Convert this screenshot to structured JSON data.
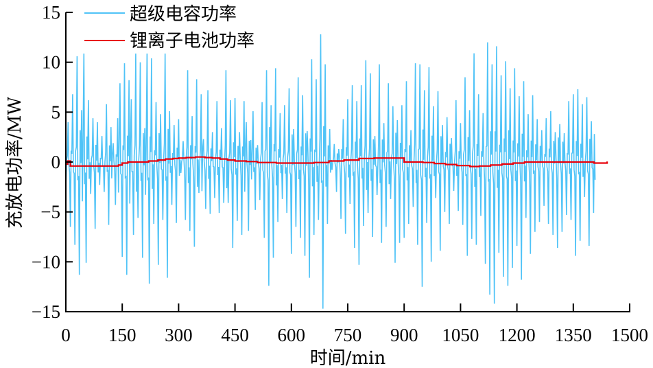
{
  "chart_data": {
    "type": "line",
    "title": "",
    "xlabel": "时间/min",
    "ylabel": "充放电功率/MW",
    "xlim": [
      0,
      1500
    ],
    "ylim": [
      -15,
      15
    ],
    "xticks": [
      0,
      150,
      300,
      450,
      600,
      750,
      900,
      1050,
      1200,
      1350,
      1500
    ],
    "yticks": [
      -15,
      -10,
      -5,
      0,
      5,
      10,
      15
    ],
    "xtick_labels": [
      "0",
      "150",
      "300",
      "450",
      "600",
      "750",
      "900",
      "1050",
      "1200",
      "1350",
      "1500"
    ],
    "ytick_labels": [
      "−15",
      "−10",
      "−5",
      "0",
      "5",
      "10",
      "15"
    ],
    "grid": false,
    "legend_position": "top-left",
    "series": [
      {
        "name": "超级电容功率",
        "color": "#4FC3F7",
        "sample_step_min": 6,
        "x_start": 0,
        "values": [
          -2.5,
          4.0,
          -6.5,
          6.8,
          -8.3,
          10.6,
          -11.3,
          5.2,
          11.1,
          -10.1,
          6.2,
          -3.2,
          4.4,
          -6.7,
          4.0,
          -2.3,
          2.6,
          -3.0,
          5.8,
          -6.3,
          3.5,
          1.9,
          -4.3,
          4.4,
          7.9,
          -9.5,
          9.9,
          -11.3,
          8.2,
          6.3,
          -7.3,
          10.9,
          -5.6,
          10.0,
          -9.6,
          3.4,
          11.1,
          -12.2,
          10.4,
          -6.2,
          6.0,
          -10.3,
          4.8,
          -5.8,
          10.9,
          -11.6,
          5.1,
          -4.3,
          3.7,
          -6.1,
          4.3,
          -1.1,
          2.1,
          -5.8,
          9.2,
          -6.9,
          4.6,
          -8.5,
          8.3,
          -3.1,
          6.8,
          2.3,
          -4.7,
          7.2,
          -5.2,
          3.0,
          -3.6,
          6.1,
          -5.1,
          3.4,
          -4.1,
          9.2,
          -4.1,
          6.2,
          -8.6,
          6.4,
          -5.9,
          3.0,
          -7.3,
          6.1,
          4.0,
          -6.9,
          2.2,
          5.1,
          -4.8,
          1.7,
          -3.8,
          6.0,
          -7.6,
          9.2,
          -12.4,
          5.7,
          -9.6,
          9.4,
          -6.0,
          4.9,
          -3.7,
          5.7,
          -5.1,
          7.4,
          -9.2,
          3.3,
          -6.5,
          8.5,
          -7.6,
          6.7,
          -9.4,
          3.1,
          -11.6,
          10.3,
          -7.3,
          8.3,
          -5.8,
          12.8,
          -14.7,
          9.8,
          -6.2,
          3.3,
          -0.8,
          1.8,
          -3.0,
          1.3,
          -5.7,
          4.3,
          -7.2,
          6.3,
          -4.2,
          7.7,
          -8.6,
          6.1,
          -10.3,
          7.7,
          -6.4,
          10.2,
          -5.1,
          8.9,
          -7.5,
          2.6,
          -3.3,
          9.8,
          -8.1,
          3.9,
          -6.5,
          7.9,
          -3.7,
          5.6,
          -10.1,
          4.2,
          -8.1,
          5.7,
          -7.6,
          8.1,
          -6.2,
          3.2,
          -4.5,
          9.9,
          -8.3,
          9.8,
          -12.5,
          7.2,
          -6.1,
          9.5,
          -10.0,
          5.6,
          -3.6,
          7.1,
          -8.9,
          3.7,
          -5.0,
          4.5,
          -6.2,
          2.4,
          -2.9,
          6.2,
          -4.9,
          3.9,
          -6.3,
          8.5,
          -9.4,
          5.2,
          -7.7,
          10.9,
          -8.3,
          6.8,
          -5.4,
          4.9,
          -10.2,
          12.0,
          -13.3,
          9.8,
          -14.2,
          11.6,
          -9.1,
          8.7,
          -11.5,
          10.1,
          -12.4,
          7.4,
          -10.6,
          9.4,
          -8.4,
          6.6,
          -11.8,
          8.1,
          -5.6,
          4.8,
          -9.2,
          6.7,
          -7.0,
          4.3,
          -6.0,
          3.2,
          -4.4,
          4.4,
          -6.2,
          5.1,
          -7.3,
          3.0,
          -8.6,
          3.8,
          -7.0,
          2.9,
          -5.3,
          6.1,
          -5.8,
          6.8,
          -9.4,
          7.3,
          -7.9,
          5.8,
          -3.5,
          6.5,
          -8.4,
          4.1,
          -5.1
        ]
      },
      {
        "name": "锂离子电池功率",
        "color": "#E8000B",
        "type": "step",
        "points": [
          [
            0,
            -0.2
          ],
          [
            5,
            0.1
          ],
          [
            12,
            0.1
          ],
          [
            12,
            -0.4
          ],
          [
            140,
            -0.4
          ],
          [
            140,
            -0.3
          ],
          [
            150,
            -0.3
          ],
          [
            150,
            -0.1
          ],
          [
            165,
            -0.1
          ],
          [
            165,
            0.0
          ],
          [
            200,
            0.0
          ],
          [
            220,
            0.1
          ],
          [
            245,
            0.2
          ],
          [
            265,
            0.3
          ],
          [
            285,
            0.35
          ],
          [
            300,
            0.4
          ],
          [
            320,
            0.45
          ],
          [
            345,
            0.5
          ],
          [
            370,
            0.45
          ],
          [
            390,
            0.4
          ],
          [
            410,
            0.3
          ],
          [
            430,
            0.2
          ],
          [
            450,
            0.1
          ],
          [
            480,
            0.05
          ],
          [
            510,
            -0.05
          ],
          [
            560,
            -0.1
          ],
          [
            640,
            -0.1
          ],
          [
            660,
            -0.05
          ],
          [
            700,
            0.1
          ],
          [
            740,
            0.2
          ],
          [
            780,
            0.35
          ],
          [
            820,
            0.4
          ],
          [
            895,
            0.4
          ],
          [
            900,
            0.0
          ],
          [
            950,
            -0.05
          ],
          [
            980,
            -0.15
          ],
          [
            1010,
            -0.25
          ],
          [
            1040,
            -0.35
          ],
          [
            1075,
            -0.45
          ],
          [
            1100,
            -0.4
          ],
          [
            1130,
            -0.3
          ],
          [
            1160,
            -0.2
          ],
          [
            1190,
            -0.1
          ],
          [
            1220,
            0.0
          ],
          [
            1400,
            0.0
          ],
          [
            1405,
            -0.1
          ],
          [
            1430,
            -0.1
          ],
          [
            1440,
            0.05
          ]
        ]
      }
    ]
  },
  "legend": {
    "items": [
      {
        "label": "超级电容功率",
        "color": "#4FC3F7"
      },
      {
        "label": "锂离子电池功率",
        "color": "#E8000B"
      }
    ]
  },
  "axes": {
    "xlabel": "时间/min",
    "ylabel": "充放电功率/MW"
  }
}
